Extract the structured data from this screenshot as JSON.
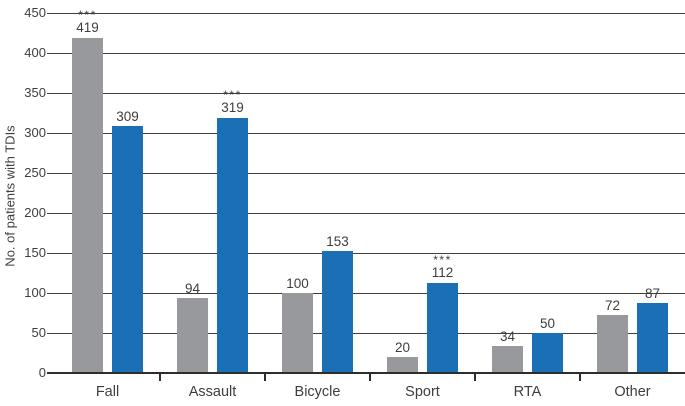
{
  "figure": {
    "ylabel": "No. of patients with TDIs"
  },
  "chart_data": {
    "type": "bar",
    "title": "",
    "xlabel": "",
    "ylabel": "No. of patients with TDIs",
    "categories": [
      "Fall",
      "Assault",
      "Bicycle",
      "Sport",
      "RTA",
      "Other"
    ],
    "series": [
      {
        "name": "series-gray",
        "color": "#97999c",
        "values": [
          419,
          94,
          100,
          20,
          34,
          72
        ],
        "annotations": [
          "***",
          "",
          "",
          "",
          "",
          ""
        ]
      },
      {
        "name": "series-blue",
        "color": "#1a6fb5",
        "values": [
          309,
          319,
          153,
          112,
          50,
          87
        ],
        "annotations": [
          "",
          "***",
          "",
          "***",
          "",
          ""
        ]
      }
    ],
    "ylim": [
      0,
      450
    ],
    "ytick_step": 50,
    "yticks": [
      0,
      50,
      100,
      150,
      200,
      250,
      300,
      350,
      400,
      450
    ],
    "grid": true,
    "legend": "none",
    "annotation_symbol": "***",
    "colors": {
      "grid": "#3f3f3e",
      "axis": "#2d2d2c",
      "text": "#3e3e3d",
      "background": "#ffffff"
    }
  }
}
